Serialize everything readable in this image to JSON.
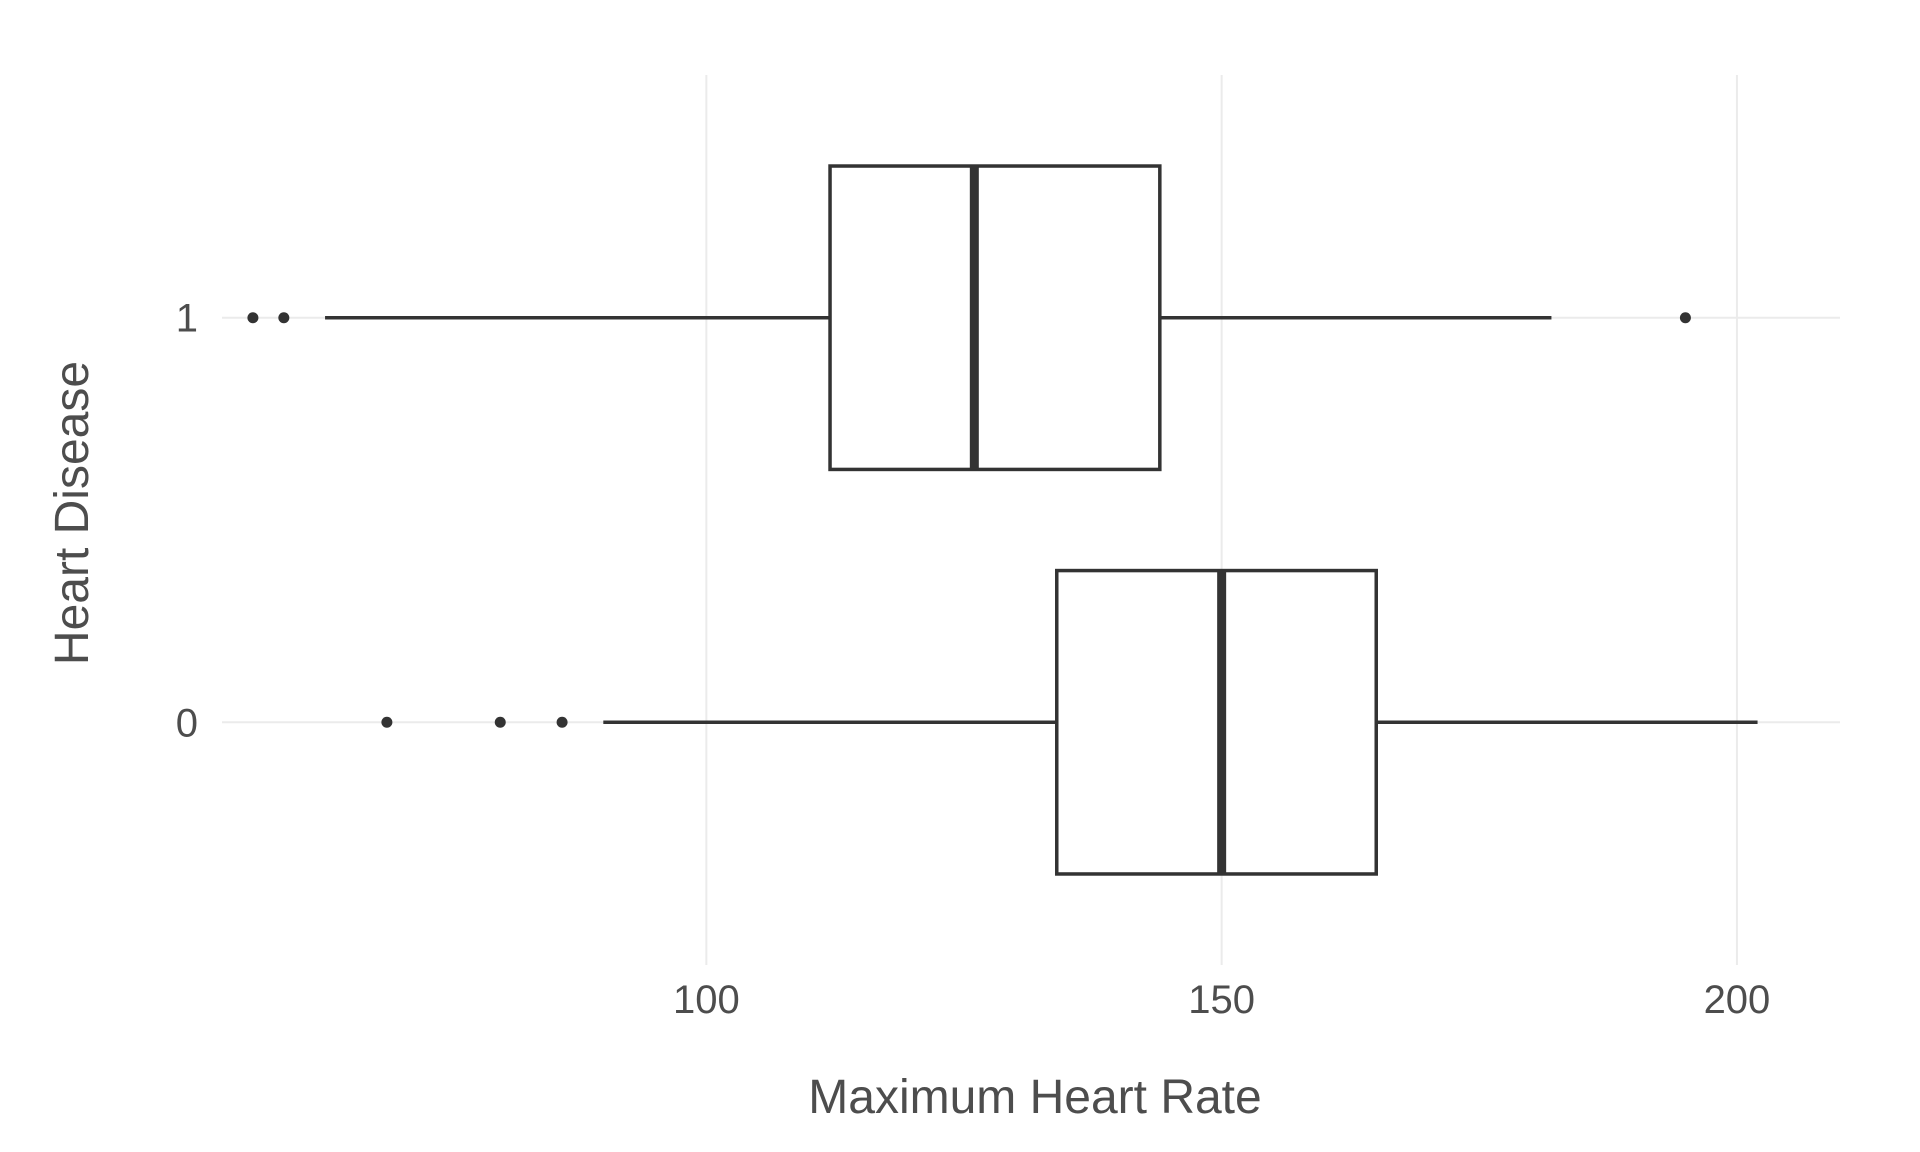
{
  "chart_data": {
    "type": "boxplot",
    "orientation": "horizontal",
    "xlabel": "Maximum Heart Rate",
    "ylabel": "Heart Disease",
    "xlim": [
      53,
      210
    ],
    "x_ticks": [
      100,
      150,
      200
    ],
    "categories": [
      "0",
      "1"
    ],
    "grid": true,
    "legend": "none",
    "colors": {
      "box_stroke": "#333333",
      "box_fill": "#ffffff",
      "grid": "#ebebeb",
      "text": "#4d4d4d"
    },
    "boxes": [
      {
        "category": "0",
        "whisker_low": 90,
        "q1": 134,
        "median": 150,
        "q3": 165,
        "whisker_high": 202,
        "outliers": [
          69,
          80,
          86
        ]
      },
      {
        "category": "1",
        "whisker_low": 63,
        "q1": 112,
        "median": 126,
        "q3": 144,
        "whisker_high": 182,
        "outliers": [
          56,
          59,
          195
        ]
      }
    ]
  }
}
